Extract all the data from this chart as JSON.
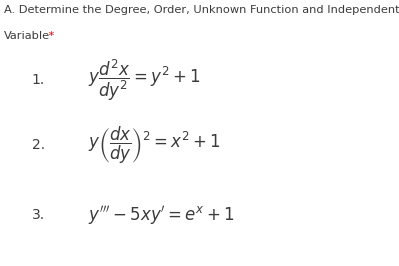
{
  "title_line1": "A. Determine the Degree, Order, Unknown Function and Independent",
  "title_line2": "Variable",
  "title_asterisk": " *",
  "title_color": "#3c3c3c",
  "asterisk_color": "#cc0000",
  "bg_color": "#ffffff",
  "eq1_number": "1.",
  "eq2_number": "2.",
  "eq3_number": "3.",
  "figsize": [
    3.99,
    2.66
  ],
  "dpi": 100
}
